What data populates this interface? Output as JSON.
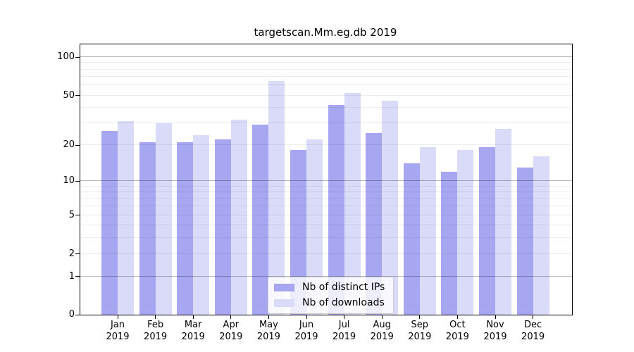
{
  "title": "targetscan.Mm.eg.db 2019",
  "chart_data": {
    "type": "bar",
    "title": "targetscan.Mm.eg.db 2019",
    "scale": "log(1+y)",
    "grid": true,
    "legend_position": "bottom-center",
    "categories": [
      "Jan",
      "Feb",
      "Mar",
      "Apr",
      "May",
      "Jun",
      "Jul",
      "Aug",
      "Sep",
      "Oct",
      "Nov",
      "Dec"
    ],
    "year_label": "2019",
    "series": [
      {
        "name": "Nb of distinct IPs",
        "color": "#a6a7f0",
        "values": [
          26,
          21,
          21,
          22,
          29,
          18,
          42,
          25,
          14,
          12,
          19,
          13
        ]
      },
      {
        "name": "Nb of downloads",
        "color": "#dadbf9",
        "values": [
          31,
          30,
          24,
          32,
          65,
          22,
          52,
          45,
          19,
          18,
          27,
          16
        ]
      }
    ],
    "yticks": [
      0,
      1,
      2,
      5,
      10,
      20,
      50,
      100
    ],
    "ylim": [
      0,
      124
    ]
  },
  "colors": {
    "grid_major": "rgba(0,0,0,0.27)",
    "grid_minor": "rgba(0,0,0,0.07)",
    "spine": "#000000"
  }
}
